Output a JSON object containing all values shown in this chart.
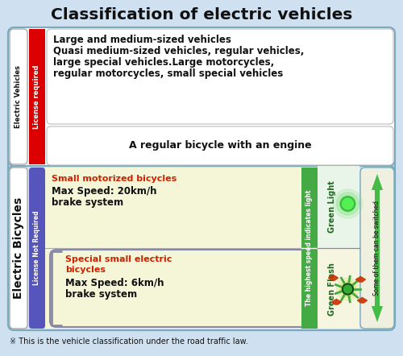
{
  "title": "Classification of electric vehicles",
  "footnote": "※ This is the vehicle classification under the road traffic law.",
  "bg_color": "#cfe0f0",
  "ev_label": "Electric Vehicles",
  "eb_label": "Electric Bicycles",
  "license_req_label": "License required",
  "license_not_req_label": "License Not Required",
  "row1_text_line1": "Large and medium-sized vehicles",
  "row1_text_line2": "Quasi medium-sized vehicles, regular vehicles,",
  "row1_text_line3": "large special vehicles.Large motorcycles,",
  "row1_text_line4": "regular motorcycles, small special vehicles",
  "row2_text": "A regular bicycle with an engine",
  "row3_title": "Small motorized bicycles",
  "row3_line1": "Max Speed: 20km/h",
  "row3_line2": "brake system",
  "row4_title_line1": "Special small electric",
  "row4_title_line2": "bicycles",
  "row4_line1": "Max Speed: 6km/h",
  "row4_line2": "brake system",
  "green_light_label": "Green Light",
  "green_flash_label": "Green Flash",
  "speed_indicator_label": "The highest speed indicates light",
  "switch_label": "Some of them can be switched",
  "license_req_bg": "#dd0000",
  "license_not_req_bg": "#5555bb",
  "green_speed_col_bg": "#44aa44",
  "bicycle_inner_bg": "#f5f5d8",
  "white_bg": "#ffffff",
  "red_text": "#cc2200",
  "dark_text": "#111111",
  "green_arrow_color": "#44bb44",
  "border_color": "#7aaabb"
}
